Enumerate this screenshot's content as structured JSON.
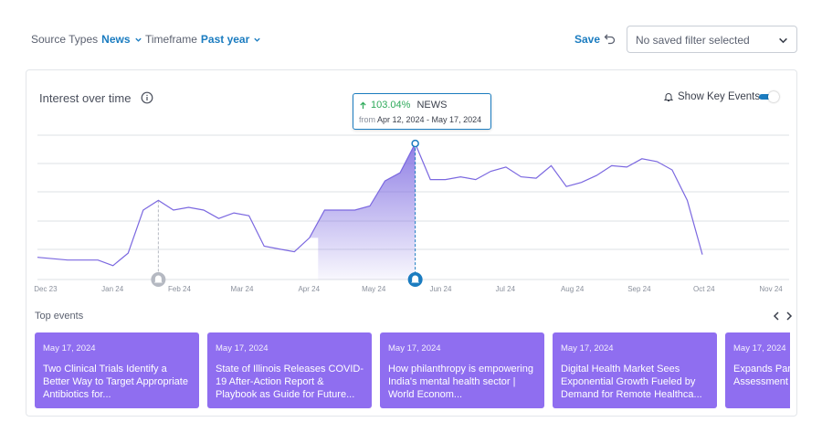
{
  "filters": {
    "source_label": "Source Types",
    "source_value": "News",
    "timeframe_label": "Timeframe",
    "timeframe_value": "Past year"
  },
  "toolbar": {
    "save_label": "Save",
    "saved_filter_placeholder": "No saved filter selected"
  },
  "card": {
    "title": "Interest over time",
    "key_events_label": "Show Key Events",
    "key_events_enabled": true
  },
  "tooltip": {
    "change": "103.04%",
    "source": "NEWS",
    "from_label": "from",
    "range": "Apr 12, 2024 - May 17, 2024"
  },
  "colors": {
    "accent": "#1b7cc0",
    "line": "#7b68e0",
    "event_card": "#8f6ef0",
    "positive": "#2eaa5a"
  },
  "chart_data": {
    "type": "line",
    "x_tick_labels": [
      "Dec 23",
      "Jan 24",
      "Feb 24",
      "Mar 24",
      "Apr 24",
      "May 24",
      "Jun 24",
      "Jul 24",
      "Aug 24",
      "Sep 24",
      "Oct 24",
      "Nov 24"
    ],
    "series": [
      {
        "values": [
          {
            "x": "2023-12-04",
            "y": 8
          },
          {
            "x": "2023-12-11",
            "y": 7.5
          },
          {
            "x": "2023-12-18",
            "y": 7
          },
          {
            "x": "2023-12-25",
            "y": 7
          },
          {
            "x": "2024-01-01",
            "y": 7
          },
          {
            "x": "2024-01-08",
            "y": 5
          },
          {
            "x": "2024-01-15",
            "y": 9.5
          },
          {
            "x": "2024-01-22",
            "y": 25
          },
          {
            "x": "2024-01-29",
            "y": 28.5
          },
          {
            "x": "2024-02-05",
            "y": 25
          },
          {
            "x": "2024-02-12",
            "y": 26
          },
          {
            "x": "2024-02-19",
            "y": 25
          },
          {
            "x": "2024-02-26",
            "y": 22
          },
          {
            "x": "2024-03-04",
            "y": 24
          },
          {
            "x": "2024-03-11",
            "y": 23
          },
          {
            "x": "2024-03-18",
            "y": 12
          },
          {
            "x": "2024-03-25",
            "y": 11
          },
          {
            "x": "2024-04-01",
            "y": 10
          },
          {
            "x": "2024-04-08",
            "y": 15
          },
          {
            "x": "2024-04-15",
            "y": 25
          },
          {
            "x": "2024-04-22",
            "y": 25
          },
          {
            "x": "2024-04-29",
            "y": 25
          },
          {
            "x": "2024-05-06",
            "y": 26.5
          },
          {
            "x": "2024-05-13",
            "y": 35.5
          },
          {
            "x": "2024-05-20",
            "y": 38.5
          },
          {
            "x": "2024-05-27",
            "y": 49
          },
          {
            "x": "2024-06-03",
            "y": 36
          },
          {
            "x": "2024-06-10",
            "y": 36
          },
          {
            "x": "2024-06-17",
            "y": 37
          },
          {
            "x": "2024-06-24",
            "y": 36
          },
          {
            "x": "2024-07-01",
            "y": 39
          },
          {
            "x": "2024-07-08",
            "y": 40.5
          },
          {
            "x": "2024-07-15",
            "y": 37
          },
          {
            "x": "2024-07-22",
            "y": 36.5
          },
          {
            "x": "2024-07-29",
            "y": 41
          },
          {
            "x": "2024-08-05",
            "y": 33.5
          },
          {
            "x": "2024-08-12",
            "y": 35
          },
          {
            "x": "2024-08-19",
            "y": 37.5
          },
          {
            "x": "2024-08-26",
            "y": 41
          },
          {
            "x": "2024-09-02",
            "y": 40.5
          },
          {
            "x": "2024-09-09",
            "y": 43.5
          },
          {
            "x": "2024-09-16",
            "y": 42.5
          },
          {
            "x": "2024-09-23",
            "y": 39.5
          },
          {
            "x": "2024-09-30",
            "y": 28.5
          },
          {
            "x": "2024-10-07",
            "y": 9
          }
        ]
      }
    ],
    "highlight": {
      "from": "2024-04-12",
      "to": "2024-05-17"
    },
    "key_events_at": [
      "2024-01-29",
      "2024-05-27"
    ],
    "ylim": [
      0,
      52
    ],
    "grid": true
  },
  "events": {
    "heading": "Top events",
    "items": [
      {
        "date": "May 17, 2024",
        "title": "Two Clinical Trials Identify a Better Way to Target Appropriate Antibiotics for..."
      },
      {
        "date": "May 17, 2024",
        "title": "State of Illinois Releases COVID-19 After-Action Report & Playbook as Guide for Future..."
      },
      {
        "date": "May 17, 2024",
        "title": "How philanthropy is empowering India's mental health sector | World Econom..."
      },
      {
        "date": "May 17, 2024",
        "title": "Digital Health Market Sees Exponential Growth Fueled by Demand for Remote Healthca..."
      },
      {
        "date": "May 17, 2024",
        "title": "Expands Par Huma: Digita Assessment"
      }
    ]
  },
  "icons": {
    "filter_chevron": "chevron-down-icon",
    "undo": "undo-icon",
    "info": "info-icon",
    "bell": "bell-icon",
    "prev": "chevron-left-icon",
    "next": "chevron-right-icon",
    "trend": "arrow-up-icon"
  }
}
